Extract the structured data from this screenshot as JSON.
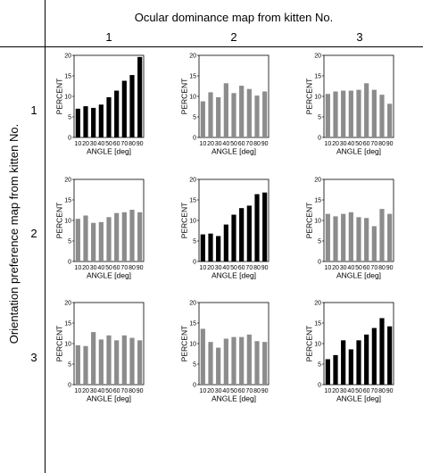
{
  "column_header": "Ocular dominance map from kitten No.",
  "row_header": "Orientation preference map from kitten No.",
  "column_numbers": [
    "1",
    "2",
    "3"
  ],
  "row_numbers": [
    "1",
    "2",
    "3"
  ],
  "colors": {
    "matched": "#000000",
    "unmatched": "#8c8c8c",
    "frame": "#000000"
  },
  "chart_data": [
    {
      "type": "bar",
      "row": 1,
      "col": 1,
      "highlight": true,
      "categories": [
        "10",
        "20",
        "30",
        "40",
        "50",
        "60",
        "70",
        "80",
        "90"
      ],
      "values": [
        7.0,
        7.6,
        7.2,
        8.0,
        9.8,
        11.4,
        13.8,
        15.2,
        19.6
      ],
      "ylim": [
        0,
        20
      ],
      "yticks": [
        "0",
        "5",
        "10",
        "15",
        "20"
      ],
      "ylabel": "PERCENT",
      "xlabel": "ANGLE [deg]"
    },
    {
      "type": "bar",
      "row": 1,
      "col": 2,
      "highlight": false,
      "categories": [
        "10",
        "20",
        "30",
        "40",
        "50",
        "60",
        "70",
        "80",
        "90"
      ],
      "values": [
        8.8,
        11.0,
        9.8,
        13.2,
        10.8,
        12.6,
        11.8,
        10.2,
        11.2
      ],
      "ylim": [
        0,
        20
      ],
      "yticks": [
        "0",
        "5",
        "10",
        "15",
        "20"
      ],
      "ylabel": "PERCENT",
      "xlabel": "ANGLE [deg]"
    },
    {
      "type": "bar",
      "row": 1,
      "col": 3,
      "highlight": false,
      "categories": [
        "10",
        "20",
        "30",
        "40",
        "50",
        "60",
        "70",
        "80",
        "90"
      ],
      "values": [
        10.6,
        11.2,
        11.4,
        11.4,
        11.6,
        13.2,
        11.6,
        10.4,
        8.2
      ],
      "ylim": [
        0,
        20
      ],
      "yticks": [
        "0",
        "5",
        "10",
        "15",
        "20"
      ],
      "ylabel": "PERCENT",
      "xlabel": "ANGLE [deg]"
    },
    {
      "type": "bar",
      "row": 2,
      "col": 1,
      "highlight": false,
      "categories": [
        "10",
        "20",
        "30",
        "40",
        "50",
        "60",
        "70",
        "80",
        "90"
      ],
      "values": [
        10.4,
        11.2,
        9.4,
        9.6,
        10.8,
        11.8,
        12.0,
        12.6,
        12.0
      ],
      "ylim": [
        0,
        20
      ],
      "yticks": [
        "0",
        "5",
        "10",
        "15",
        "20"
      ],
      "ylabel": "PERCENT",
      "xlabel": "ANGLE [deg]"
    },
    {
      "type": "bar",
      "row": 2,
      "col": 2,
      "highlight": true,
      "categories": [
        "10",
        "20",
        "30",
        "40",
        "50",
        "60",
        "70",
        "80",
        "90"
      ],
      "values": [
        6.6,
        6.8,
        6.2,
        9.0,
        11.4,
        13.0,
        13.6,
        16.4,
        16.8
      ],
      "ylim": [
        0,
        20
      ],
      "yticks": [
        "0",
        "5",
        "10",
        "15",
        "20"
      ],
      "ylabel": "PERCENT",
      "xlabel": "ANGLE [deg]"
    },
    {
      "type": "bar",
      "row": 2,
      "col": 3,
      "highlight": false,
      "categories": [
        "10",
        "20",
        "30",
        "40",
        "50",
        "60",
        "70",
        "80",
        "90"
      ],
      "values": [
        11.6,
        11.0,
        11.6,
        12.0,
        10.8,
        10.6,
        8.6,
        12.8,
        11.6
      ],
      "ylim": [
        0,
        20
      ],
      "yticks": [
        "0",
        "5",
        "10",
        "15",
        "20"
      ],
      "ylabel": "PERCENT",
      "xlabel": "ANGLE [deg]"
    },
    {
      "type": "bar",
      "row": 3,
      "col": 1,
      "highlight": false,
      "categories": [
        "10",
        "20",
        "30",
        "40",
        "50",
        "60",
        "70",
        "80",
        "90"
      ],
      "values": [
        9.6,
        9.4,
        12.8,
        11.0,
        12.0,
        10.8,
        12.0,
        11.4,
        10.8
      ],
      "ylim": [
        0,
        20
      ],
      "yticks": [
        "0",
        "5",
        "10",
        "15",
        "20"
      ],
      "ylabel": "PERCENT",
      "xlabel": "ANGLE [deg]"
    },
    {
      "type": "bar",
      "row": 3,
      "col": 2,
      "highlight": false,
      "categories": [
        "10",
        "20",
        "30",
        "40",
        "50",
        "60",
        "70",
        "80",
        "90"
      ],
      "values": [
        13.6,
        10.4,
        9.0,
        11.2,
        11.6,
        11.6,
        12.2,
        10.6,
        10.4
      ],
      "ylim": [
        0,
        20
      ],
      "yticks": [
        "0",
        "5",
        "10",
        "15",
        "20"
      ],
      "ylabel": "PERCENT",
      "xlabel": "ANGLE [deg]"
    },
    {
      "type": "bar",
      "row": 3,
      "col": 3,
      "highlight": true,
      "categories": [
        "10",
        "20",
        "30",
        "40",
        "50",
        "60",
        "70",
        "80",
        "90"
      ],
      "values": [
        6.2,
        7.2,
        10.8,
        8.6,
        10.8,
        12.2,
        13.8,
        16.2,
        14.2
      ],
      "ylim": [
        0,
        20
      ],
      "yticks": [
        "0",
        "5",
        "10",
        "15",
        "20"
      ],
      "ylabel": "PERCENT",
      "xlabel": "ANGLE [deg]"
    }
  ]
}
